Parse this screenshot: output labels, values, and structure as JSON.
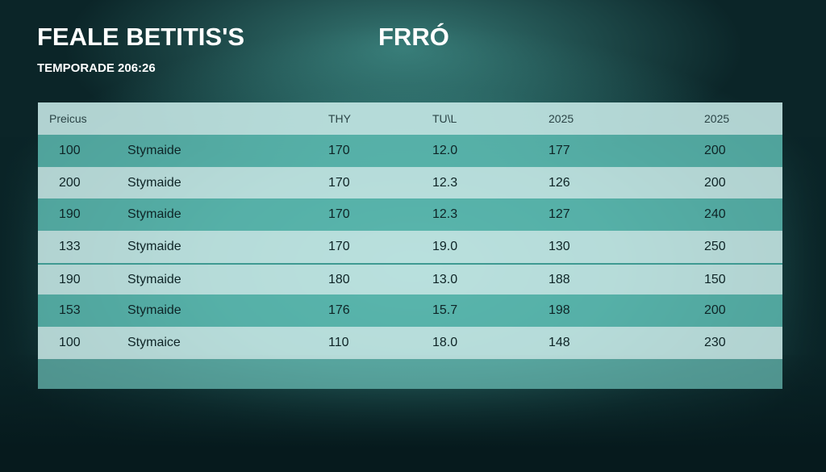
{
  "header": {
    "title": "FEALE BETITIS'S",
    "title_right": "FRRÓ",
    "subtitle": "TEMPORADE 206:26"
  },
  "table": {
    "columns": [
      "Preicus",
      "",
      "THY",
      "TU\\L",
      "2025",
      "2025"
    ],
    "rows": [
      [
        "100",
        "Stymaide",
        "170",
        "12.0",
        "177",
        "200"
      ],
      [
        "200",
        "Stymaide",
        "170",
        "12.3",
        "126",
        "200"
      ],
      [
        "190",
        "Stymaide",
        "170",
        "12.3",
        "127",
        "240"
      ],
      [
        "133",
        "Stymaide",
        "170",
        "19.0",
        "130",
        "250"
      ],
      [
        "190",
        "Stymaide",
        "180",
        "13.0",
        "188",
        "150"
      ],
      [
        "153",
        "Stymaide",
        "176",
        "15.7",
        "198",
        "200"
      ],
      [
        "100",
        "Stymaice",
        "110",
        "18.0",
        "148",
        "230"
      ]
    ]
  },
  "colors": {
    "accent": "#3f9a92",
    "row_dark": "#5fbeb4",
    "row_light": "#cdeeeb"
  }
}
